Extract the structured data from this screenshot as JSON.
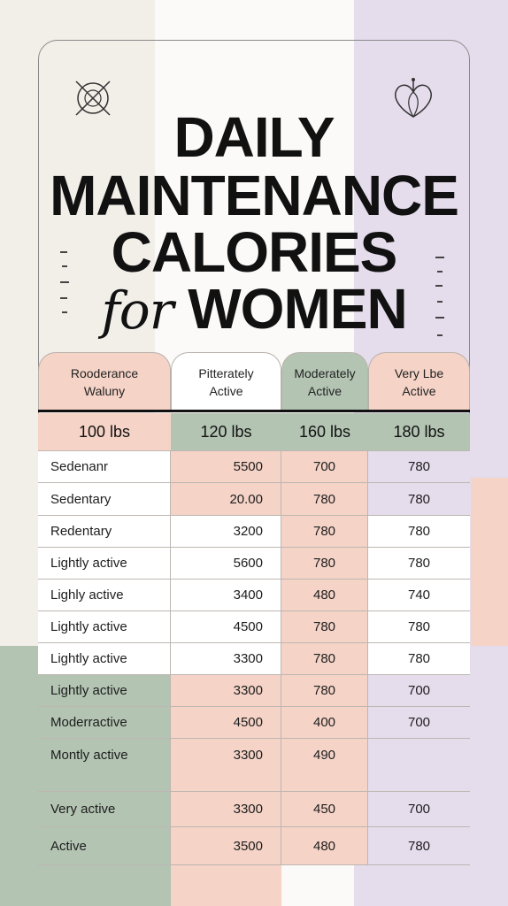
{
  "title": {
    "line1": "DAILY",
    "line2": "MAINTENANCE",
    "line3": "CALORIES",
    "line4_italic": "for",
    "line4": "WOMEN"
  },
  "icons": {
    "top_left": "crossed-circle-icon",
    "top_right": "heart-outline-icon"
  },
  "colors": {
    "peach": "#f5d3c7",
    "sage": "#b3c4b3",
    "lavender": "#e5dcec",
    "cream": "#f2eee8",
    "white": "#ffffff"
  },
  "headers": [
    {
      "label": "Rooderance\nWaluny",
      "color": "#f5d3c7"
    },
    {
      "label": "Pitterately\nActive",
      "color": "#ffffff"
    },
    {
      "label": "Moderately\nActive",
      "color": "#b3c4b3"
    },
    {
      "label": "Very Lbe\nActive",
      "color": "#f5d3c7"
    }
  ],
  "weights": [
    {
      "label": "100 lbs",
      "color": "#f5d3c7"
    },
    {
      "label": "120 lbs",
      "color": "#b3c4b3"
    },
    {
      "label": "160 lbs",
      "color": "#b3c4b3"
    },
    {
      "label": "180 lbs",
      "color": "#b3c4b3"
    }
  ],
  "rows": [
    {
      "label": "Sedenanr",
      "v1": "5500",
      "v2": "700",
      "v3": "780"
    },
    {
      "label": "Sedentary",
      "v1": "20.00",
      "v2": "780",
      "v3": "780"
    },
    {
      "label": "Redentary",
      "v1": "3200",
      "v2": "780",
      "v3": "780"
    },
    {
      "label": "Lightly active",
      "v1": "5600",
      "v2": "780",
      "v3": "780"
    },
    {
      "label": "Lighly active",
      "v1": "3400",
      "v2": "480",
      "v3": "740"
    },
    {
      "label": "Lightly active",
      "v1": "4500",
      "v2": "780",
      "v3": "780"
    },
    {
      "label": "Lightly active",
      "v1": "3300",
      "v2": "780",
      "v3": "780"
    },
    {
      "label": "Lightly active",
      "v1": "3300",
      "v2": "780",
      "v3": "700"
    },
    {
      "label": "Moderractive",
      "v1": "4500",
      "v2": "400",
      "v3": "700"
    },
    {
      "label": "Montly active",
      "v1": "3300",
      "v2": "490",
      "v3": ""
    },
    {
      "label": "Very active",
      "v1": "3300",
      "v2": "450",
      "v3": "700"
    },
    {
      "label": "Active",
      "v1": "3500",
      "v2": "480",
      "v3": "780"
    }
  ]
}
